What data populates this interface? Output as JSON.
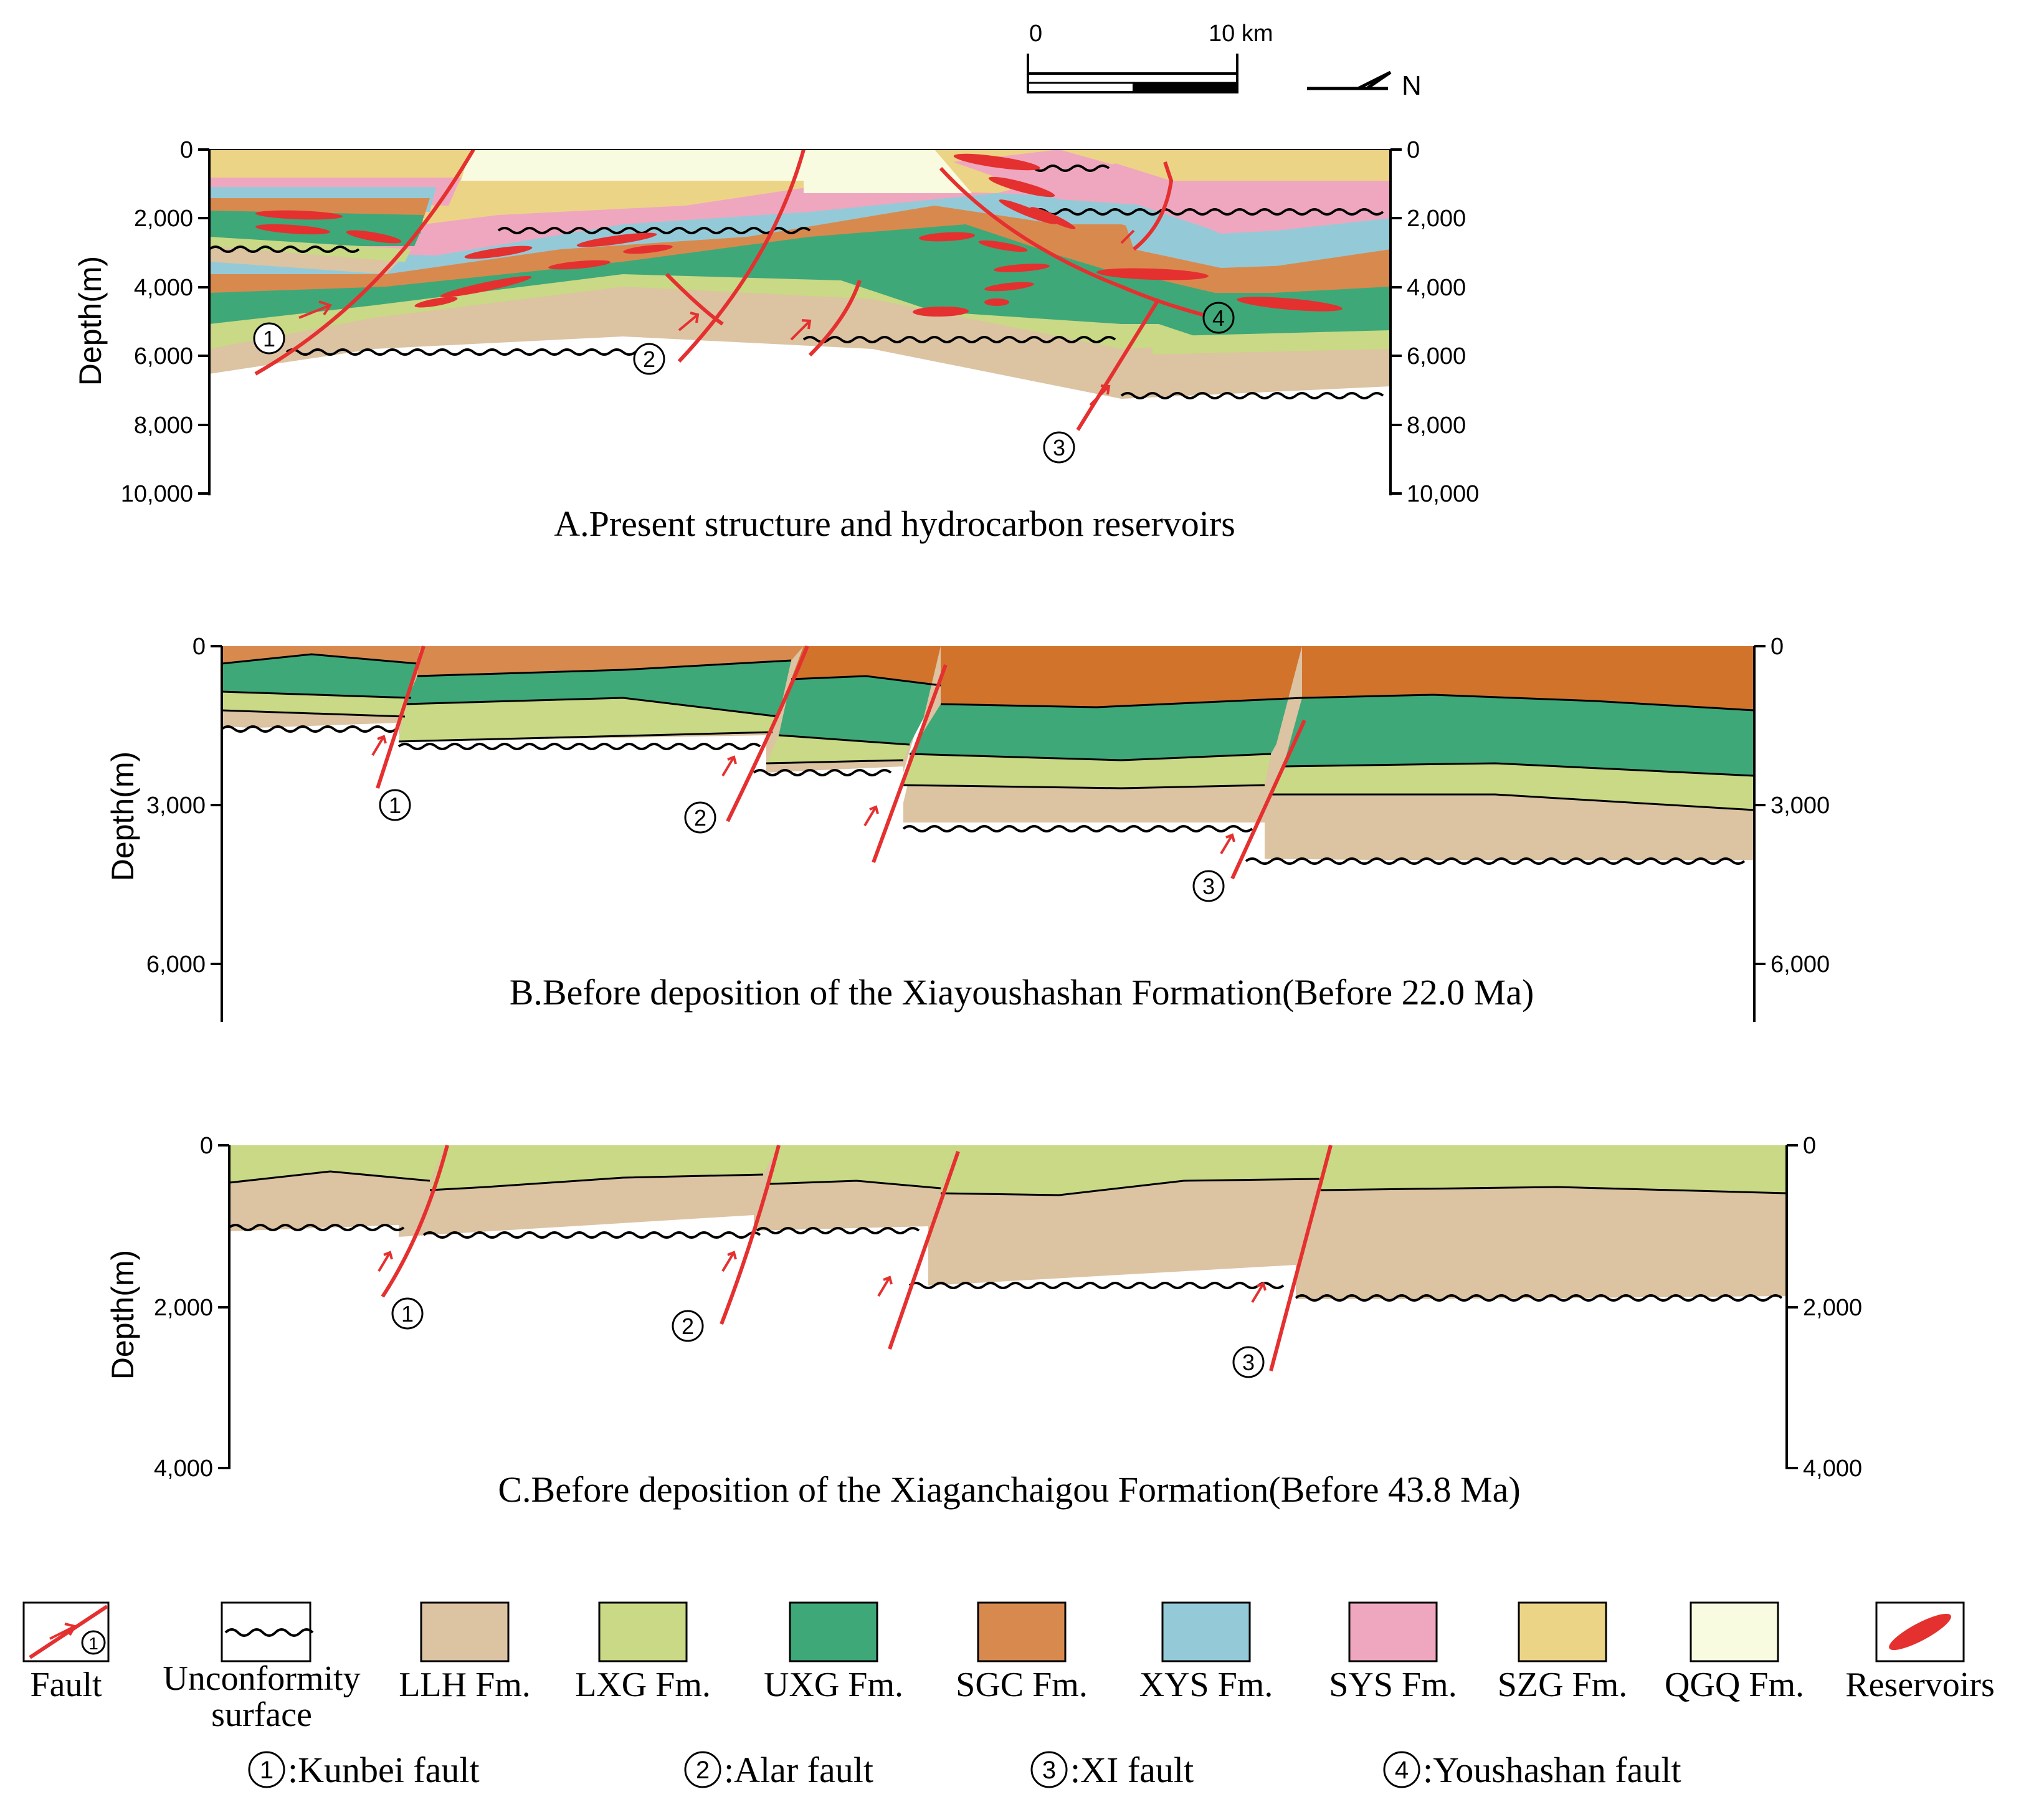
{
  "colors": {
    "LLH": "#dcc3a2",
    "LXG": "#c9d985",
    "UXG": "#3ea878",
    "SGC": "#d88a4e",
    "XYS": "#94cad8",
    "SYS": "#efa7bf",
    "SZG": "#ecd487",
    "QGQ": "#f8fbdf",
    "SGC_B": "#d2732c",
    "fault": "#e53030"
  },
  "scale": {
    "zero": "0",
    "end": "10 km",
    "north": "N"
  },
  "panelA": {
    "caption": "A.Present structure and hydrocarbon reservoirs",
    "axis_label": "Depth(m)",
    "left_ticks": [
      "0",
      "2,000",
      "4,000",
      "6,000",
      "8,000",
      "10,000"
    ],
    "right_ticks": [
      "0",
      "2,000",
      "4,000",
      "6,000",
      "8,000",
      "10,000"
    ],
    "fault_numbers": [
      "1",
      "2",
      "3",
      "4"
    ]
  },
  "panelB": {
    "caption": "B.Before deposition of the Xiayoushashan Formation(Before 22.0 Ma)",
    "axis_label": "Depth(m)",
    "left_ticks": [
      "0",
      "3,000",
      "6,000"
    ],
    "right_ticks": [
      "0",
      "3,000",
      "6,000"
    ],
    "fault_numbers": [
      "1",
      "2",
      "3"
    ]
  },
  "panelC": {
    "caption": "C.Before deposition of the Xiaganchaigou Formation(Before 43.8 Ma)",
    "axis_label": "Depth(m)",
    "left_ticks": [
      "0",
      "2,000",
      "4,000"
    ],
    "right_ticks": [
      "0",
      "2,000",
      "4,000"
    ],
    "fault_numbers": [
      "1",
      "2",
      "3"
    ]
  },
  "legend": {
    "items": [
      {
        "key": "fault",
        "label": "Fault",
        "icon_number": "1"
      },
      {
        "key": "unconformity",
        "label_line1": "Unconformity",
        "label_line2": "surface"
      },
      {
        "key": "LLH",
        "label": "LLH Fm."
      },
      {
        "key": "LXG",
        "label": "LXG Fm."
      },
      {
        "key": "UXG",
        "label": "UXG Fm."
      },
      {
        "key": "SGC",
        "label": "SGC Fm."
      },
      {
        "key": "XYS",
        "label": "XYS Fm."
      },
      {
        "key": "SYS",
        "label": "SYS Fm."
      },
      {
        "key": "SZG",
        "label": "SZG Fm."
      },
      {
        "key": "QGQ",
        "label": "QGQ Fm."
      },
      {
        "key": "reservoirs",
        "label": "Reservoirs"
      }
    ],
    "faults": [
      {
        "number": "1",
        "name": ":Kunbei fault"
      },
      {
        "number": "2",
        "name": ":Alar fault"
      },
      {
        "number": "3",
        "name": ":XI fault"
      },
      {
        "number": "4",
        "name": ":Youshashan fault"
      }
    ]
  }
}
